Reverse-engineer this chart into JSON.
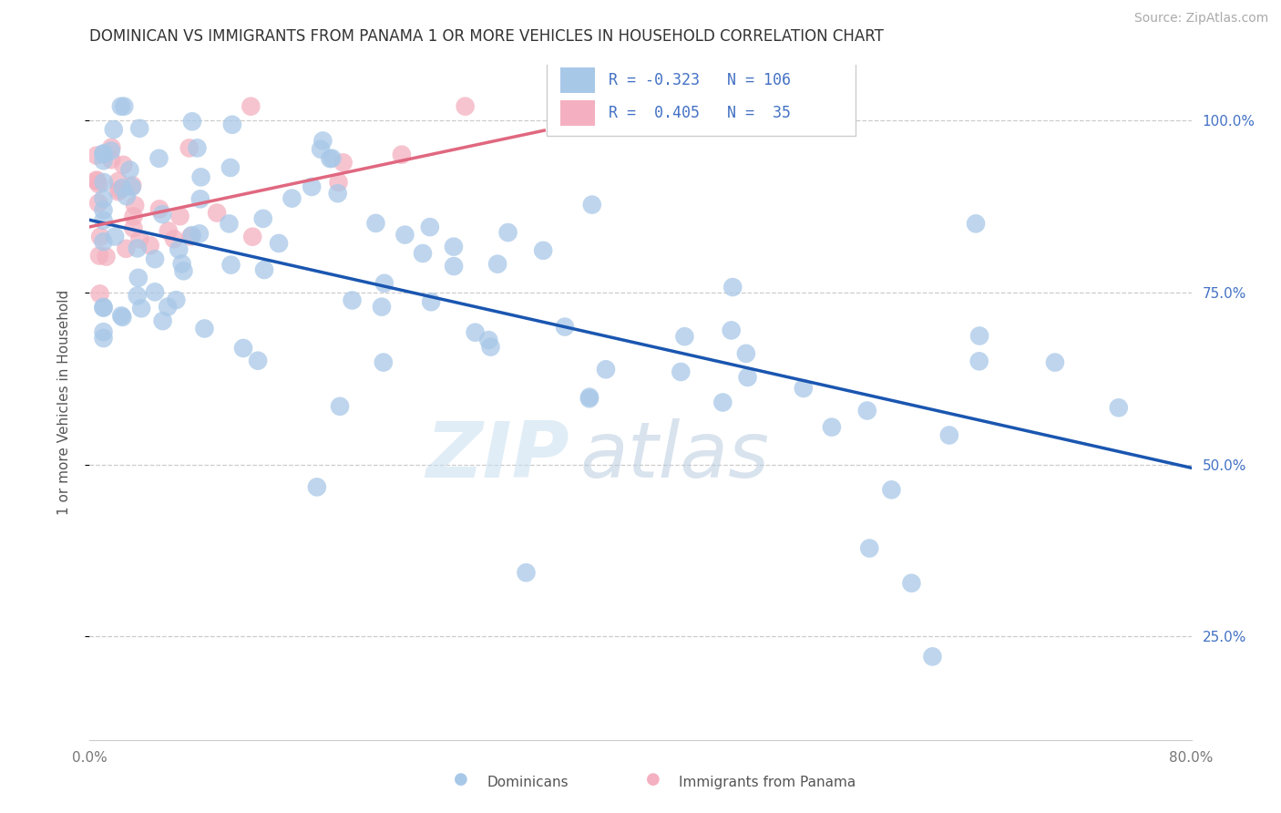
{
  "title": "DOMINICAN VS IMMIGRANTS FROM PANAMA 1 OR MORE VEHICLES IN HOUSEHOLD CORRELATION CHART",
  "source": "Source: ZipAtlas.com",
  "ylabel": "1 or more Vehicles in Household",
  "blue_R": -0.323,
  "blue_N": 106,
  "pink_R": 0.405,
  "pink_N": 35,
  "blue_color": "#a8c8e8",
  "blue_line_color": "#1a56b0",
  "pink_color": "#f4b0c0",
  "pink_line_color": "#e06880",
  "legend_label_blue": "Dominicans",
  "legend_label_pink": "Immigrants from Panama",
  "watermark_zip": "ZIP",
  "watermark_atlas": "atlas",
  "xlim": [
    0.0,
    0.8
  ],
  "ylim": [
    0.1,
    1.08
  ],
  "x_ticks": [
    0.0,
    0.1,
    0.2,
    0.3,
    0.4,
    0.5,
    0.6,
    0.7,
    0.8
  ],
  "x_tick_labels": [
    "0.0%",
    "",
    "",
    "",
    "",
    "",
    "",
    "",
    "80.0%"
  ],
  "y_ticks": [
    0.25,
    0.5,
    0.75,
    1.0
  ],
  "y_tick_labels_right": [
    "25.0%",
    "50.0%",
    "75.0%",
    "100.0%"
  ],
  "blue_line_x0": 0.0,
  "blue_line_y0": 0.855,
  "blue_line_x1": 0.8,
  "blue_line_y1": 0.495,
  "pink_line_x0": 0.0,
  "pink_line_y0": 0.845,
  "pink_line_x1": 0.33,
  "pink_line_y1": 0.985
}
